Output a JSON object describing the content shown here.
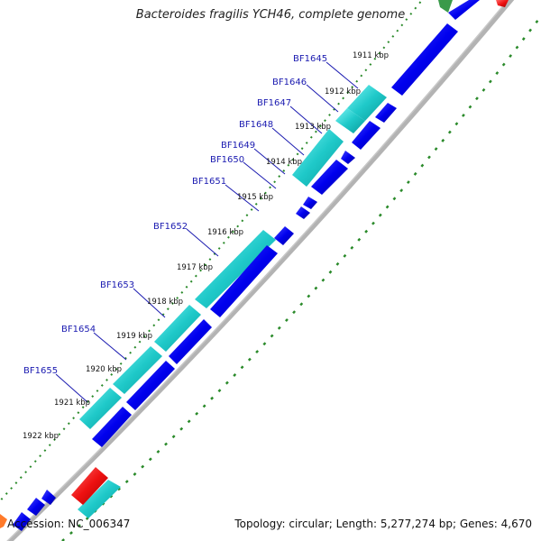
{
  "title": "Bacteroides fragilis YCH46, complete genome",
  "footer": {
    "accession": "Accession: NC_006347",
    "info": "Topology: circular; Length: 5,277,274 bp; Genes: 4,670"
  },
  "genes": [
    "BF1645",
    "BF1646",
    "BF1647",
    "BF1648",
    "BF1649",
    "BF1650",
    "BF1651",
    "BF1652",
    "BF1653",
    "BF1654",
    "BF1655"
  ],
  "positions": [
    "1911 kbp",
    "1912 kbp",
    "1913 kbp",
    "1914 kbp",
    "1915 kbp",
    "1916 kbp",
    "1917 kbp",
    "1918 kbp",
    "1919 kbp",
    "1920 kbp",
    "1921 kbp",
    "1922 kbp"
  ],
  "colors": {
    "cds": "#0000ee",
    "gene": "#22cccc",
    "highlight": "#00eeee",
    "rna": "#ee1111",
    "gc": "#2a8a2a",
    "backbone": "#888888"
  }
}
